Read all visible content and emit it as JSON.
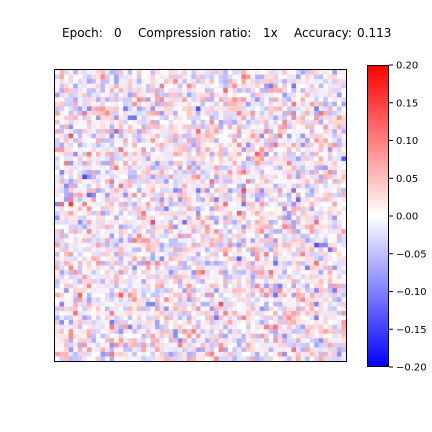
{
  "title_parts": {
    "epoch_label": "Epoch:",
    "epoch_value": "0",
    "compression_label": "Compression ratio:",
    "compression_value": "1x",
    "accuracy_label": "Accuracy:",
    "accuracy_value": "0.113"
  },
  "chart_data": {
    "type": "heatmap",
    "grid": {
      "rows": 64,
      "cols": 64
    },
    "colormap": "bwr",
    "colorbar": {
      "vmin": -0.2,
      "vmax": 0.2,
      "tick_values": [
        0.2,
        0.15,
        0.1,
        0.05,
        0.0,
        -0.05,
        -0.1,
        -0.15,
        -0.2
      ],
      "tick_labels": [
        "0.20",
        "0.15",
        "0.10",
        "0.05",
        "0.00",
        "−0.05",
        "−0.10",
        "−0.15",
        "−0.20"
      ]
    },
    "colors": {
      "low": "#0000ff",
      "mid": "#ffffff",
      "high": "#ff0000"
    },
    "axes_ticks_visible": false
  }
}
